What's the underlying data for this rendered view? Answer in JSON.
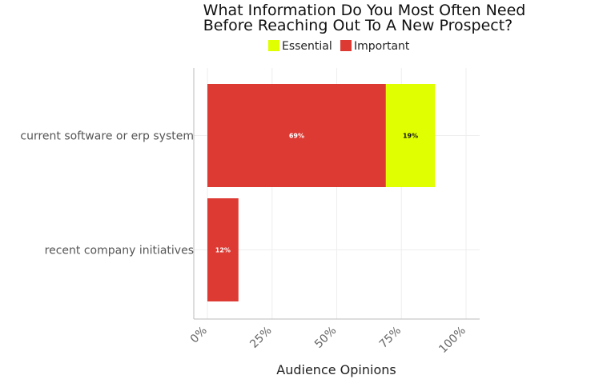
{
  "chart_data": {
    "type": "bar",
    "orientation": "horizontal",
    "stacked": true,
    "title": "What Information Do You Most Often Need Before Reaching Out To A New Prospect?",
    "title_lines": [
      "What Information Do You Most Often Need",
      "Before Reaching Out To A New Prospect?"
    ],
    "xlabel": "Audience Opinions",
    "ylabel": "",
    "xlim": [
      0,
      100
    ],
    "x_ticks": [
      "0%",
      "25%",
      "50%",
      "75%",
      "100%"
    ],
    "x_tick_values": [
      0,
      25,
      50,
      75,
      100
    ],
    "grid": true,
    "legend_position": "top",
    "categories": [
      "current software or erp system",
      "recent company initiatives"
    ],
    "series": [
      {
        "name": "Important",
        "color": "#dd3a33",
        "label_color": "#ffffff",
        "values": [
          69,
          12
        ],
        "labels": [
          "69%",
          "12%"
        ]
      },
      {
        "name": "Essential",
        "color": "#e0ff00",
        "label_color": "#111111",
        "values": [
          19,
          null
        ],
        "labels": [
          "19%",
          null
        ]
      }
    ],
    "legend": [
      {
        "name": "Essential",
        "color": "#e0ff00"
      },
      {
        "name": "Important",
        "color": "#dd3a33"
      }
    ]
  }
}
